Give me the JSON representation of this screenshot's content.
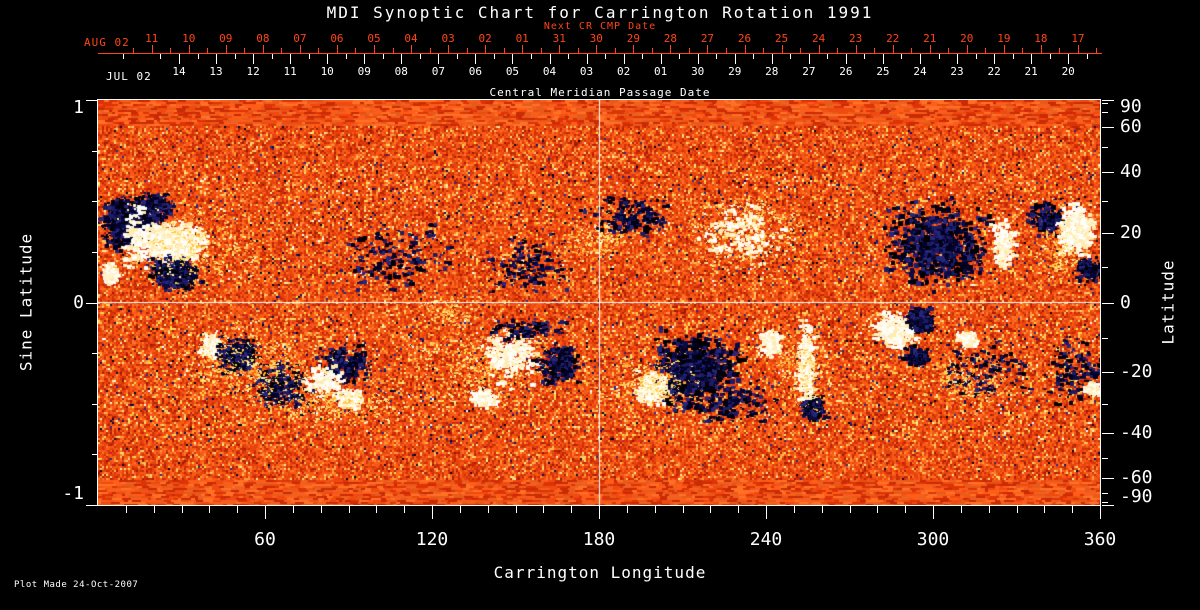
{
  "window": {
    "title": "MDI Synoptic Chart for Carrington Rotation 1991"
  },
  "footer": {
    "plot_made": "Plot Made 24-Oct-2007"
  },
  "colors": {
    "background": "#000000",
    "axis_white": "#ffffff",
    "axis_red": "#ff4418",
    "map_base_orange": "#e8430e",
    "negative_polarity_dark": "#0b0b44",
    "positive_polarity_light": "#ffffff",
    "plage_yellow": "#ffd254"
  },
  "chart_data": {
    "type": "heatmap",
    "title": "MDI Synoptic Chart for Carrington Rotation 1991",
    "xlabel": "Carrington Longitude",
    "ylabel_left": "Sine Latitude",
    "ylabel_right": "Latitude",
    "xlim": [
      0,
      360
    ],
    "ylim": [
      -1,
      1
    ],
    "grid": "crosshair",
    "crosshair": {
      "longitude": 180,
      "sine_latitude": 0
    },
    "x_major_ticks": [
      60,
      120,
      180,
      240,
      300,
      360
    ],
    "x_minor_step_deg": 10,
    "left_major_ticks": [
      "1",
      "0",
      "-1"
    ],
    "left_major_values": [
      1,
      0,
      -1
    ],
    "left_minor_values": [
      0.75,
      0.5,
      0.25,
      -0.25,
      -0.5,
      -0.75
    ],
    "right_major_ticks": [
      "90",
      "60",
      "40",
      "20",
      "0",
      "-20",
      "-40",
      "-60",
      "-90"
    ],
    "right_major_values": [
      90,
      60,
      40,
      20,
      0,
      -20,
      -40,
      -60,
      -90
    ],
    "right_minor_values": [
      80,
      70,
      50,
      30,
      10,
      -10,
      -30,
      -50,
      -70,
      -80
    ],
    "top_axes": {
      "next_cr": {
        "title": "Next CR CMP Date",
        "month_label": "AUG 02",
        "day_labels": [
          "11",
          "10",
          "09",
          "08",
          "07",
          "06",
          "05",
          "04",
          "03",
          "02",
          "01",
          "31",
          "30",
          "29",
          "28",
          "27",
          "26",
          "25",
          "24",
          "23",
          "22",
          "21",
          "20",
          "19",
          "18",
          "17"
        ]
      },
      "cmp": {
        "title": "Central Meridian Passage Date",
        "month_label": "JUL 02",
        "day_labels": [
          "14",
          "13",
          "12",
          "11",
          "10",
          "09",
          "08",
          "07",
          "06",
          "05",
          "04",
          "03",
          "02",
          "01",
          "30",
          "29",
          "28",
          "27",
          "26",
          "25",
          "24",
          "23",
          "22",
          "21",
          "20"
        ]
      }
    },
    "noise_seed": 19912,
    "palette": {
      "base": [
        "#e8430e",
        "#f55a16",
        "#d23009",
        "#ff7524",
        "#c32506",
        "#ff5c14",
        "#ff9a3c",
        "#ac1b03",
        "#ffc159",
        "#ffda6e",
        "#9a1500"
      ],
      "polar": [
        "#dd3407",
        "#ef4a10",
        "#ff5d18",
        "#ca2a06",
        "#ff7226",
        "#e85a1a",
        "#f06020"
      ],
      "neg": [
        "#00001c",
        "#0b0b44",
        "#1b1b66",
        "#03032e",
        "#000000",
        "#26267a"
      ],
      "pos": [
        "#ffffff",
        "#fffdf0",
        "#fff4cf",
        "#ffebb0"
      ],
      "plage": [
        "#ffd65f",
        "#ffe98c",
        "#ffc63e",
        "#fff4ad",
        "#ffb62e"
      ]
    },
    "active_regions": [
      {
        "lon": 10.5,
        "slat": 0.4,
        "rlon": 9,
        "rslat": 0.13,
        "pol": "neg",
        "n": 550
      },
      {
        "lon": 20,
        "slat": 0.47,
        "rlon": 7,
        "rslat": 0.08,
        "pol": "neg",
        "n": 180
      },
      {
        "lon": 27,
        "slat": 0.3,
        "rlon": 11,
        "rslat": 0.1,
        "pol": "pos",
        "n": 500
      },
      {
        "lon": 27,
        "slat": 0.14,
        "rlon": 10,
        "rslat": 0.09,
        "pol": "neg",
        "n": 260
      },
      {
        "lon": 4,
        "slat": 0.15,
        "rlon": 3,
        "rslat": 0.05,
        "pol": "pos",
        "n": 120
      },
      {
        "lon": 33,
        "slat": 0.28,
        "rlon": 26,
        "rslat": 0.22,
        "pol": "plage",
        "n": 300
      },
      {
        "lon": 14,
        "slat": 0.33,
        "rlon": 6,
        "rslat": 0.18,
        "pol": "pos",
        "n": 140
      },
      {
        "lon": 108,
        "slat": 0.24,
        "rlon": 22,
        "rslat": 0.2,
        "pol": "neg",
        "n": 130
      },
      {
        "lon": 154,
        "slat": 0.19,
        "rlon": 19,
        "rslat": 0.17,
        "pol": "neg",
        "n": 120
      },
      {
        "lon": 180,
        "slat": 0.31,
        "rlon": 13,
        "rslat": 0.1,
        "pol": "plage",
        "n": 160
      },
      {
        "lon": 190,
        "slat": 0.42,
        "rlon": 14,
        "rslat": 0.12,
        "pol": "neg",
        "n": 140
      },
      {
        "lon": 232,
        "slat": 0.36,
        "rlon": 24,
        "rslat": 0.22,
        "pol": "plage",
        "n": 380
      },
      {
        "lon": 232,
        "slat": 0.33,
        "rlon": 18,
        "rslat": 0.16,
        "pol": "pos",
        "n": 160
      },
      {
        "lon": 301,
        "slat": 0.3,
        "rlon": 19,
        "rslat": 0.21,
        "pol": "neg",
        "n": 600
      },
      {
        "lon": 325,
        "slat": 0.3,
        "rlon": 4.5,
        "rslat": 0.12,
        "pol": "pos",
        "n": 180
      },
      {
        "lon": 340,
        "slat": 0.42,
        "rlon": 6.5,
        "rslat": 0.09,
        "pol": "neg",
        "n": 150
      },
      {
        "lon": 351,
        "slat": 0.36,
        "rlon": 7,
        "rslat": 0.13,
        "pol": "pos",
        "n": 320
      },
      {
        "lon": 356,
        "slat": 0.17,
        "rlon": 5.5,
        "rslat": 0.06,
        "pol": "neg",
        "n": 140
      },
      {
        "lon": 345,
        "slat": 0.25,
        "rlon": 8,
        "rslat": 0.14,
        "pol": "plage",
        "n": 120
      },
      {
        "lon": 40,
        "slat": -0.21,
        "rlon": 4.5,
        "rslat": 0.06,
        "pol": "pos",
        "n": 150
      },
      {
        "lon": 50,
        "slat": -0.25,
        "rlon": 8,
        "rslat": 0.09,
        "pol": "neg",
        "n": 260
      },
      {
        "lon": 65,
        "slat": -0.4,
        "rlon": 11,
        "rslat": 0.13,
        "pol": "neg",
        "n": 180
      },
      {
        "lon": 54,
        "slat": -0.33,
        "rlon": 30,
        "rslat": 0.24,
        "pol": "plage",
        "n": 420
      },
      {
        "lon": 88,
        "slat": -0.3,
        "rlon": 10,
        "rslat": 0.1,
        "pol": "neg",
        "n": 200
      },
      {
        "lon": 90,
        "slat": -0.47,
        "rlon": 4.5,
        "rslat": 0.045,
        "pol": "pos",
        "n": 140
      },
      {
        "lon": 80,
        "slat": -0.38,
        "rlon": 8,
        "rslat": 0.1,
        "pol": "pos",
        "n": 150
      },
      {
        "lon": 137,
        "slat": -0.33,
        "rlon": 28,
        "rslat": 0.22,
        "pol": "plage",
        "n": 400
      },
      {
        "lon": 148,
        "slat": -0.25,
        "rlon": 11,
        "rslat": 0.15,
        "pol": "pos",
        "n": 260
      },
      {
        "lon": 165,
        "slat": -0.3,
        "rlon": 7.5,
        "rslat": 0.12,
        "pol": "neg",
        "n": 220
      },
      {
        "lon": 138,
        "slat": -0.47,
        "rlon": 4.5,
        "rslat": 0.045,
        "pol": "pos",
        "n": 130
      },
      {
        "lon": 155,
        "slat": -0.13,
        "rlon": 14,
        "rslat": 0.06,
        "pol": "neg",
        "n": 100
      },
      {
        "lon": 214,
        "slat": -0.33,
        "rlon": 16,
        "rslat": 0.2,
        "pol": "neg",
        "n": 650
      },
      {
        "lon": 198,
        "slat": -0.42,
        "rlon": 6,
        "rslat": 0.09,
        "pol": "pos",
        "n": 170
      },
      {
        "lon": 241,
        "slat": -0.19,
        "rlon": 4.5,
        "rslat": 0.08,
        "pol": "pos",
        "n": 150
      },
      {
        "lon": 230,
        "slat": -0.49,
        "rlon": 14,
        "rslat": 0.12,
        "pol": "neg",
        "n": 120
      },
      {
        "lon": 254,
        "slat": -0.3,
        "rlon": 3,
        "rslat": 0.25,
        "pol": "pos",
        "n": 260
      },
      {
        "lon": 256,
        "slat": -0.52,
        "rlon": 4.5,
        "rslat": 0.07,
        "pol": "neg",
        "n": 160
      },
      {
        "lon": 286,
        "slat": -0.13,
        "rlon": 7,
        "rslat": 0.09,
        "pol": "pos",
        "n": 300
      },
      {
        "lon": 295,
        "slat": -0.08,
        "rlon": 5,
        "rslat": 0.06,
        "pol": "neg",
        "n": 220
      },
      {
        "lon": 294,
        "slat": -0.26,
        "rlon": 4.5,
        "rslat": 0.05,
        "pol": "neg",
        "n": 120
      },
      {
        "lon": 318,
        "slat": -0.33,
        "rlon": 18,
        "rslat": 0.17,
        "pol": "neg",
        "n": 110
      },
      {
        "lon": 312,
        "slat": -0.17,
        "rlon": 3.5,
        "rslat": 0.04,
        "pol": "pos",
        "n": 100
      },
      {
        "lon": 351,
        "slat": -0.34,
        "rlon": 11,
        "rslat": 0.17,
        "pol": "neg",
        "n": 120
      },
      {
        "lon": 357,
        "slat": -0.42,
        "rlon": 3,
        "rslat": 0.03,
        "pol": "pos",
        "n": 90
      },
      {
        "lon": 198,
        "slat": -0.4,
        "rlon": 18,
        "rslat": 0.16,
        "pol": "plage",
        "n": 220
      },
      {
        "lon": 253,
        "slat": -0.35,
        "rlon": 13,
        "rslat": 0.2,
        "pol": "plage",
        "n": 200
      },
      {
        "lon": 310,
        "slat": -0.4,
        "rlon": 18,
        "rslat": 0.15,
        "pol": "plage",
        "n": 150
      },
      {
        "lon": 126,
        "slat": -0.04,
        "rlon": 11,
        "rslat": 0.08,
        "pol": "plage",
        "n": 100
      },
      {
        "lon": 86,
        "slat": -0.5,
        "rlon": 30,
        "rslat": 0.1,
        "pol": "plage",
        "n": 250
      }
    ]
  }
}
